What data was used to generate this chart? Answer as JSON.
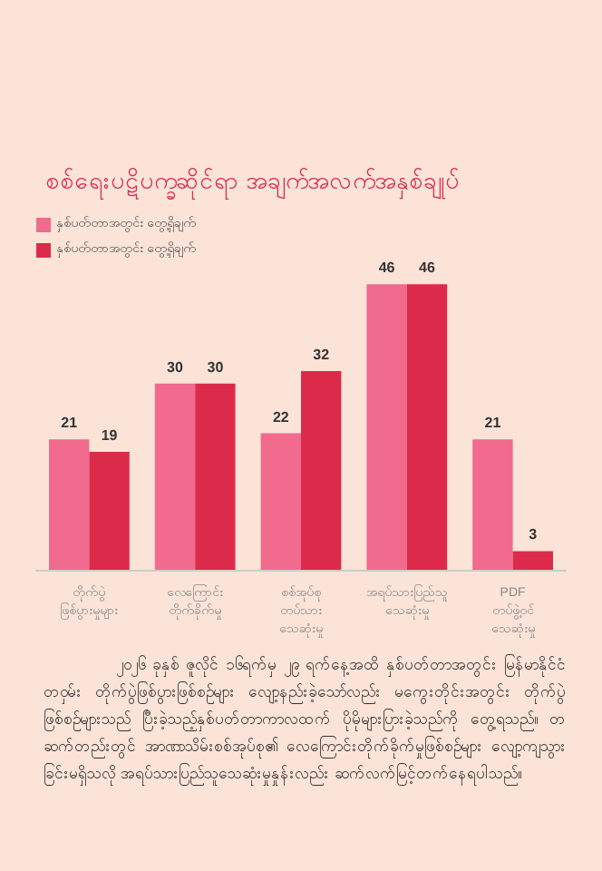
{
  "chart_data": {
    "type": "bar",
    "title": "စစ်ရေးပဋိပက္ခဆိုင်ရာ အချက်အလက်အနှစ်ချုပ်",
    "categories": [
      "တိုက်ပွဲ ဖြစ်ပွားမှုများ",
      "လေကြောင်း တိုက်ခိုက်မှု",
      "စစ်အုပ်စု တပ်သား သေဆုံးမှု",
      "အရပ်သားပြည်သူ သေဆုံးမှု",
      "PDF တပ်ဖွဲ့ဝင် သေဆုံးမှု"
    ],
    "series": [
      {
        "name": "နှစ်ပတ်တာအတွင်း တွေ့ရှိချက်",
        "color": "#f06b8e",
        "values": [
          21,
          30,
          22,
          46,
          21
        ]
      },
      {
        "name": "နှစ်ပတ်တာအတွင်း တွေ့ရှိချက်",
        "color": "#dc2b4a",
        "values": [
          19,
          30,
          32,
          46,
          3
        ]
      }
    ],
    "data_labels": true,
    "legend": "top left",
    "annotations": [
      "၂၀၂၆ ခုနှစ် ဇူလိုင် ၁၆ရက်မှ ၂၉ ရက်နေ့အထိ နှစ်ပတ်တာအတွင်း မြန်မာနိုင်ငံတဝှမ်း တိုက်ပွဲဖြစ်ပွားဖြစ်စဉ်များ လျော့နည်းခဲ့သော်လည်း မကွေးတိုင်းအတွင်း တိုက်ပွဲဖြစ်စဉ်များသည် ပြီးခဲ့သည့်နှစ်ပတ်တာကာလထက် ပိုမိုများပြားခဲ့သည်ကို တွေ့ရသည်။ တဆက်တည်းတွင် အာဏာသိမ်းစစ်အုပ်စု၏ လေကြောင်းတိုက်ခိုက်မှုဖြစ်စဉ်များ လျော့ကျသွားခြင်းမရှိသလို အရပ်သားပြည်သူသေဆုံးမှုနှုန်းလည်း ဆက်လက်မြင့်တက်နေရပါသည်။"
    ]
  }
}
